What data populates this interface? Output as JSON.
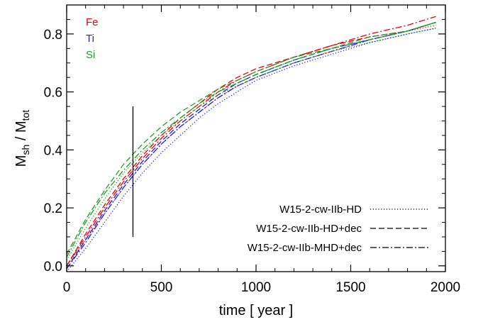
{
  "chart_data": {
    "type": "line",
    "xlabel": "time [ year ]",
    "ylabel": {
      "main": "M",
      "sub1": "sh",
      "mid": " / M",
      "sub2": "tot"
    },
    "xlim": [
      0,
      2000
    ],
    "ylim": [
      -0.02,
      0.9
    ],
    "xticks": [
      0,
      500,
      1000,
      1500,
      2000
    ],
    "yticks": [
      0.0,
      0.2,
      0.4,
      0.6,
      0.8
    ],
    "ytick_labels": [
      "0.0",
      "0.2",
      "0.4",
      "0.6",
      "0.8"
    ],
    "element_labels": [
      {
        "text": "Fe",
        "color": "#e8000b"
      },
      {
        "text": "Ti",
        "color": "#1f1fd6"
      },
      {
        "text": "Si",
        "color": "#1ea01e"
      }
    ],
    "legend": [
      {
        "label": "W15-2-cw-IIb-HD",
        "style": "dotted"
      },
      {
        "label": "W15-2-cw-IIb-HD+dec",
        "style": "dashed"
      },
      {
        "label": "W15-2-cw-IIb-MHD+dec",
        "style": "dashdot"
      }
    ],
    "vertical_marker": {
      "x": 350,
      "y": [
        0.1,
        0.55
      ]
    },
    "series": [
      {
        "element": "Fe",
        "style": "dashdot",
        "color": "#e8000b",
        "x": [
          0,
          100,
          200,
          300,
          400,
          500,
          600,
          700,
          800,
          900,
          1000,
          1200,
          1400,
          1600,
          1800,
          1950
        ],
        "y": [
          0.0,
          0.1,
          0.2,
          0.29,
          0.37,
          0.44,
          0.5,
          0.55,
          0.6,
          0.64,
          0.67,
          0.72,
          0.76,
          0.8,
          0.83,
          0.86
        ]
      },
      {
        "element": "Fe",
        "style": "dashed",
        "color": "#e8000b",
        "x": [
          0,
          100,
          200,
          300,
          400,
          500,
          600,
          700,
          800,
          900,
          1000,
          1200,
          1400,
          1600,
          1800,
          1950
        ],
        "y": [
          0.0,
          0.11,
          0.21,
          0.3,
          0.38,
          0.45,
          0.51,
          0.56,
          0.61,
          0.65,
          0.68,
          0.72,
          0.76,
          0.79,
          0.81,
          0.84
        ]
      },
      {
        "element": "Fe",
        "style": "dotted",
        "color": "#e8000b",
        "x": [
          0,
          100,
          200,
          300,
          400,
          500,
          600,
          700,
          800,
          900,
          1000,
          1200,
          1400,
          1600,
          1800,
          1950
        ],
        "y": [
          0.0,
          0.09,
          0.18,
          0.27,
          0.35,
          0.42,
          0.48,
          0.53,
          0.58,
          0.62,
          0.65,
          0.7,
          0.74,
          0.78,
          0.81,
          0.83
        ]
      },
      {
        "element": "Ti",
        "style": "dashdot",
        "color": "#1f1fd6",
        "x": [
          0,
          100,
          200,
          300,
          400,
          500,
          600,
          700,
          800,
          900,
          1000,
          1200,
          1400,
          1600,
          1800,
          1950
        ],
        "y": [
          -0.01,
          0.08,
          0.18,
          0.27,
          0.35,
          0.42,
          0.48,
          0.53,
          0.58,
          0.62,
          0.65,
          0.7,
          0.74,
          0.78,
          0.81,
          0.84
        ]
      },
      {
        "element": "Ti",
        "style": "dashed",
        "color": "#1f1fd6",
        "x": [
          0,
          100,
          200,
          300,
          400,
          500,
          600,
          700,
          800,
          900,
          1000,
          1200,
          1400,
          1600,
          1800,
          1950
        ],
        "y": [
          -0.01,
          0.09,
          0.19,
          0.28,
          0.36,
          0.43,
          0.49,
          0.54,
          0.59,
          0.63,
          0.66,
          0.71,
          0.75,
          0.78,
          0.81,
          0.84
        ]
      },
      {
        "element": "Ti",
        "style": "dotted",
        "color": "#1f1fd6",
        "x": [
          0,
          100,
          200,
          300,
          400,
          500,
          600,
          700,
          800,
          900,
          1000,
          1200,
          1400,
          1600,
          1800,
          1950
        ],
        "y": [
          -0.02,
          0.06,
          0.15,
          0.24,
          0.32,
          0.39,
          0.45,
          0.51,
          0.56,
          0.6,
          0.64,
          0.69,
          0.73,
          0.77,
          0.8,
          0.82
        ]
      },
      {
        "element": "Si",
        "style": "dashdot",
        "color": "#1ea01e",
        "x": [
          0,
          100,
          200,
          300,
          400,
          500,
          600,
          700,
          800,
          900,
          1000,
          1200,
          1400,
          1600,
          1800,
          1950
        ],
        "y": [
          0.03,
          0.15,
          0.25,
          0.33,
          0.4,
          0.46,
          0.51,
          0.56,
          0.6,
          0.63,
          0.66,
          0.71,
          0.75,
          0.78,
          0.81,
          0.84
        ]
      },
      {
        "element": "Si",
        "style": "dashed",
        "color": "#1ea01e",
        "x": [
          0,
          100,
          200,
          300,
          400,
          500,
          600,
          700,
          800,
          900,
          1000,
          1200,
          1400,
          1600,
          1800,
          1950
        ],
        "y": [
          0.04,
          0.16,
          0.26,
          0.35,
          0.42,
          0.48,
          0.53,
          0.57,
          0.61,
          0.64,
          0.67,
          0.72,
          0.75,
          0.79,
          0.81,
          0.84
        ]
      },
      {
        "element": "Si",
        "style": "dotted",
        "color": "#1ea01e",
        "x": [
          0,
          100,
          200,
          300,
          400,
          500,
          600,
          700,
          800,
          900,
          1000,
          1200,
          1400,
          1600,
          1800,
          1950
        ],
        "y": [
          0.02,
          0.13,
          0.23,
          0.32,
          0.39,
          0.45,
          0.5,
          0.55,
          0.59,
          0.62,
          0.65,
          0.7,
          0.74,
          0.77,
          0.8,
          0.82
        ]
      }
    ]
  }
}
